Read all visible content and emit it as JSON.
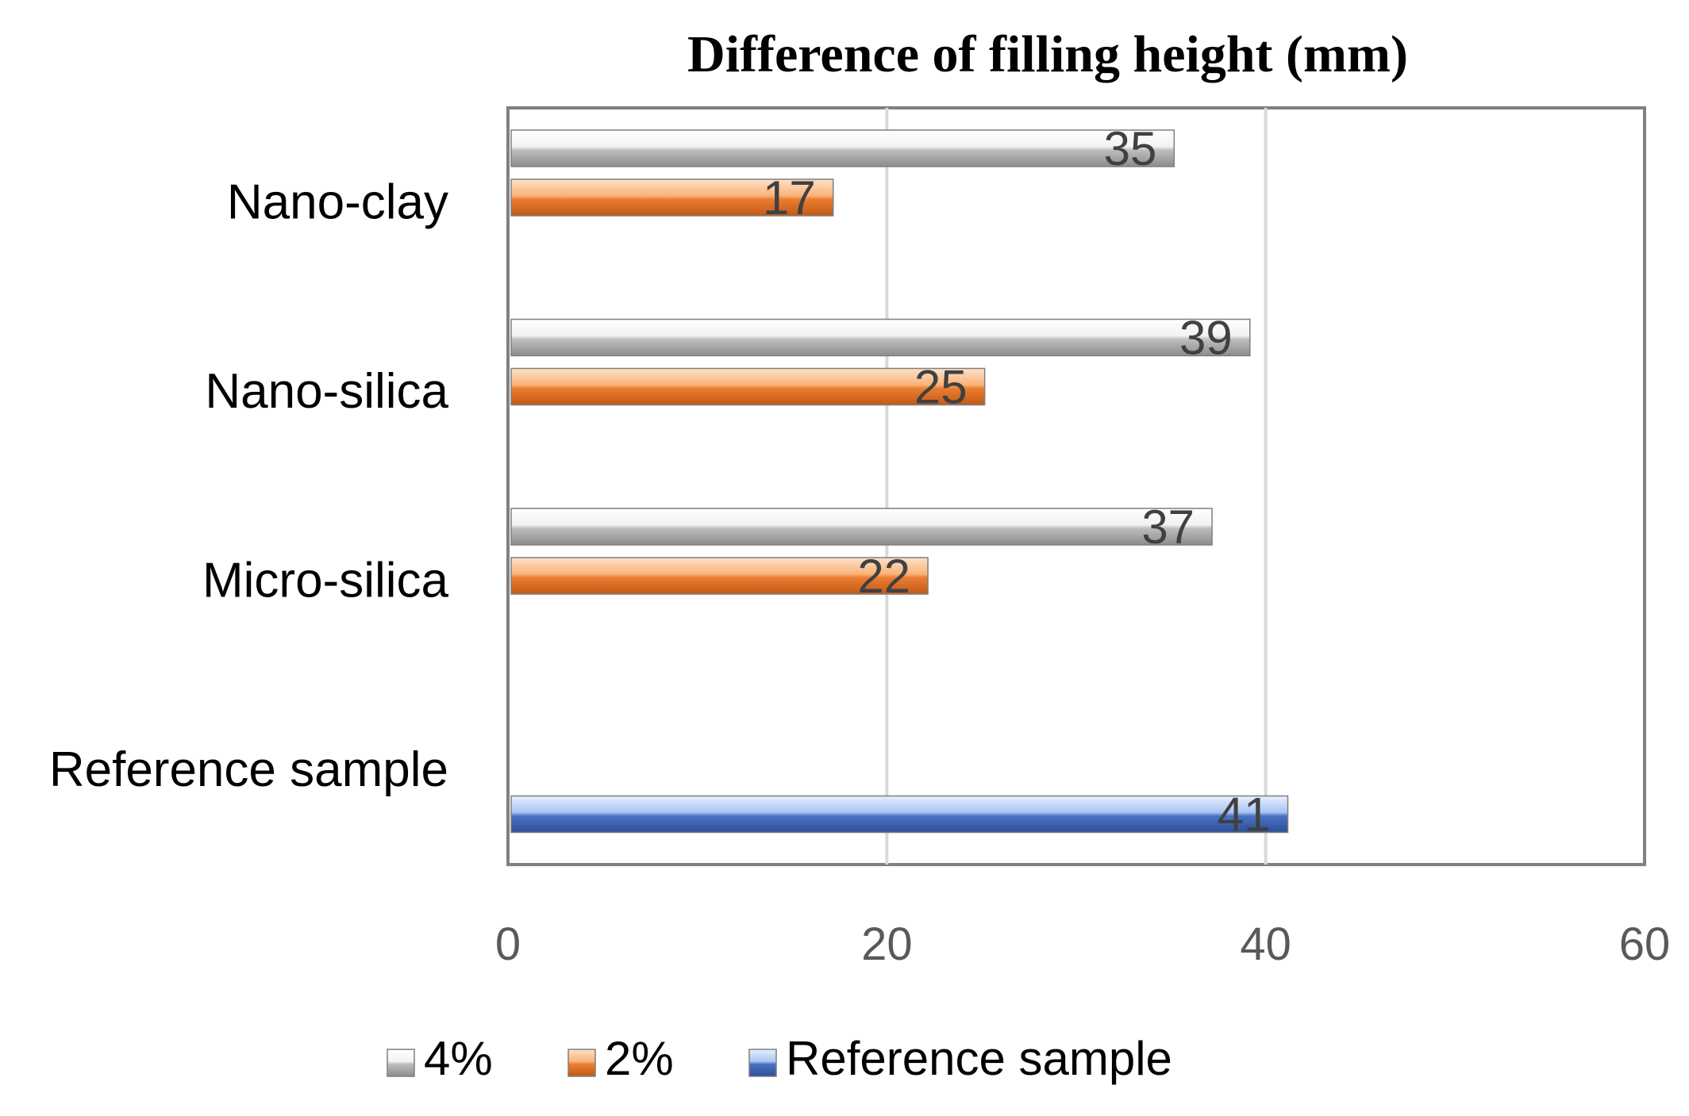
{
  "chart_data": {
    "type": "bar",
    "orientation": "horizontal",
    "title": "Difference of filling height (mm)",
    "xlabel": "",
    "ylabel": "",
    "categories": [
      "Reference sample",
      "Micro-silica",
      "Nano-silica",
      "Nano-clay"
    ],
    "series": [
      {
        "name": "4%",
        "color": "#bfbfbf",
        "values": [
          null,
          37,
          39,
          35
        ]
      },
      {
        "name": "2%",
        "color": "#ed8a3f",
        "values": [
          null,
          22,
          25,
          17
        ]
      },
      {
        "name": "Reference sample",
        "color": "#4a72c4",
        "values": [
          41,
          null,
          null,
          null
        ]
      }
    ],
    "xlim": [
      0,
      60
    ],
    "xticks": [
      0,
      20,
      40,
      60
    ],
    "xtick_labels": [
      "0",
      "20",
      "40",
      "60"
    ],
    "grid": true,
    "data_labels": true,
    "legend_position": "bottom"
  }
}
